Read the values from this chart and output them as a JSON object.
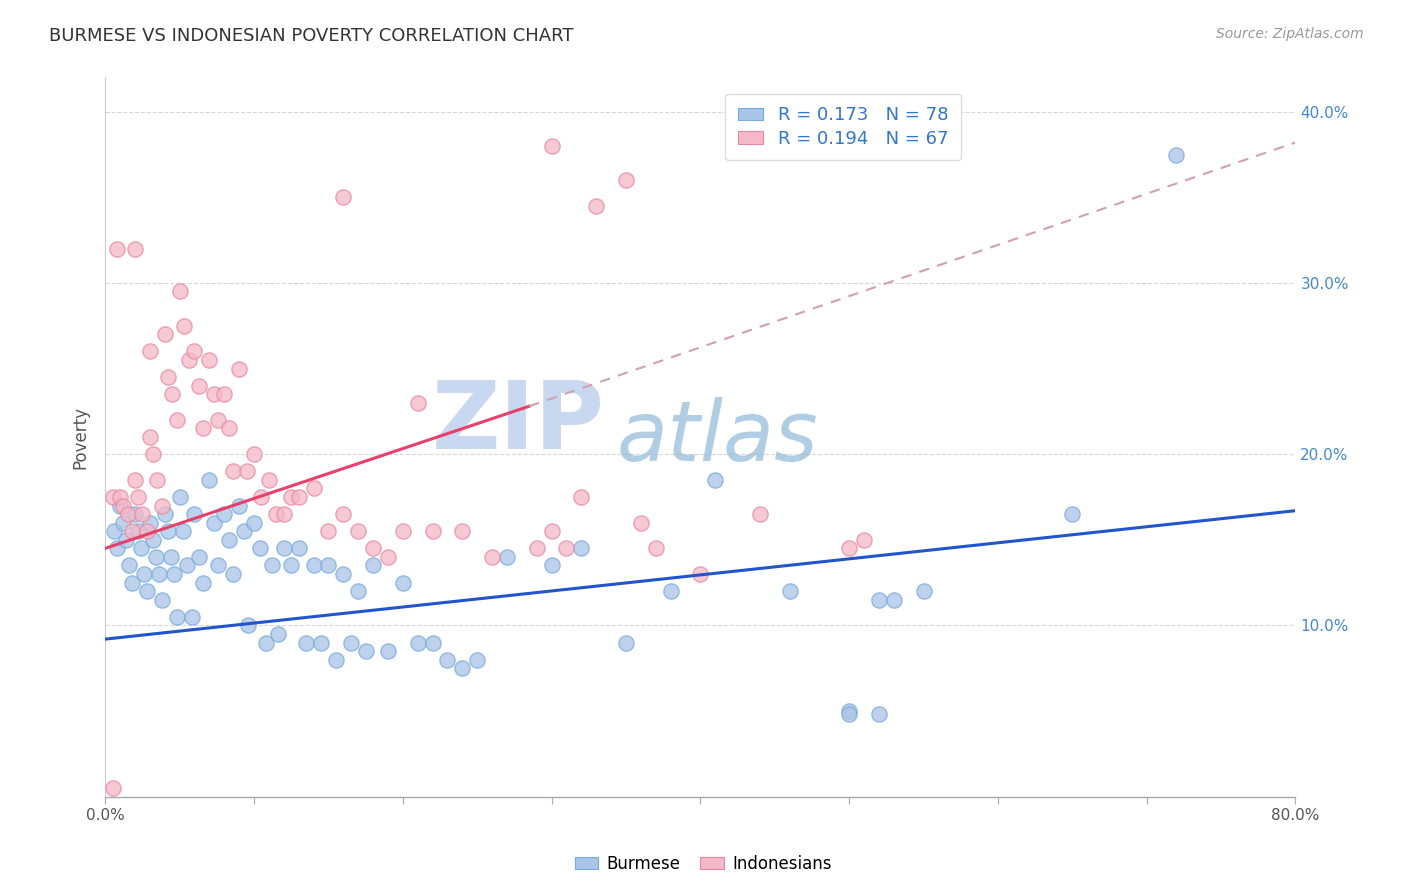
{
  "title": "BURMESE VS INDONESIAN POVERTY CORRELATION CHART",
  "source": "Source: ZipAtlas.com",
  "ylabel": "Poverty",
  "xlim": [
    0.0,
    0.8
  ],
  "ylim": [
    0.0,
    0.42
  ],
  "xtick_labels": [
    "0.0%",
    "",
    "",
    "",
    "",
    "",
    "",
    "",
    "80.0%"
  ],
  "xtick_vals": [
    0.0,
    0.1,
    0.2,
    0.3,
    0.4,
    0.5,
    0.6,
    0.7,
    0.8
  ],
  "ytick_labels": [
    "10.0%",
    "20.0%",
    "30.0%",
    "40.0%"
  ],
  "ytick_vals": [
    0.1,
    0.2,
    0.3,
    0.4
  ],
  "burmese_color": "#a8c4e8",
  "burmese_edge_color": "#7aaad8",
  "indonesian_color": "#f4b8c8",
  "indonesian_edge_color": "#e888a0",
  "burmese_line_color": "#2255cc",
  "indonesian_line_color": "#e8406a",
  "indonesian_dashed_color": "#d0a0b0",
  "R_burmese": 0.173,
  "N_burmese": 78,
  "R_indonesian": 0.194,
  "N_indonesian": 67,
  "watermark_zip": "ZIP",
  "watermark_atlas": "atlas",
  "watermark_color_zip": "#c8d8f0",
  "watermark_color_atlas": "#8fb8d8",
  "legend_text_color": "#3377cc",
  "burmese_x": [
    0.006,
    0.008,
    0.01,
    0.012,
    0.014,
    0.016,
    0.018,
    0.02,
    0.022,
    0.024,
    0.026,
    0.028,
    0.03,
    0.032,
    0.034,
    0.036,
    0.038,
    0.04,
    0.042,
    0.044,
    0.046,
    0.048,
    0.05,
    0.052,
    0.055,
    0.058,
    0.06,
    0.063,
    0.066,
    0.07,
    0.073,
    0.076,
    0.08,
    0.083,
    0.086,
    0.09,
    0.093,
    0.096,
    0.1,
    0.104,
    0.108,
    0.112,
    0.116,
    0.12,
    0.125,
    0.13,
    0.135,
    0.14,
    0.145,
    0.15,
    0.155,
    0.16,
    0.165,
    0.17,
    0.175,
    0.18,
    0.19,
    0.2,
    0.21,
    0.22,
    0.23,
    0.24,
    0.25,
    0.27,
    0.3,
    0.32,
    0.35,
    0.38,
    0.41,
    0.46,
    0.52,
    0.55,
    0.5,
    0.5,
    0.52,
    0.53,
    0.65,
    0.72
  ],
  "burmese_y": [
    0.155,
    0.145,
    0.17,
    0.16,
    0.15,
    0.135,
    0.125,
    0.165,
    0.155,
    0.145,
    0.13,
    0.12,
    0.16,
    0.15,
    0.14,
    0.13,
    0.115,
    0.165,
    0.155,
    0.14,
    0.13,
    0.105,
    0.175,
    0.155,
    0.135,
    0.105,
    0.165,
    0.14,
    0.125,
    0.185,
    0.16,
    0.135,
    0.165,
    0.15,
    0.13,
    0.17,
    0.155,
    0.1,
    0.16,
    0.145,
    0.09,
    0.135,
    0.095,
    0.145,
    0.135,
    0.145,
    0.09,
    0.135,
    0.09,
    0.135,
    0.08,
    0.13,
    0.09,
    0.12,
    0.085,
    0.135,
    0.085,
    0.125,
    0.09,
    0.09,
    0.08,
    0.075,
    0.08,
    0.14,
    0.135,
    0.145,
    0.09,
    0.12,
    0.185,
    0.12,
    0.115,
    0.12,
    0.05,
    0.048,
    0.048,
    0.115,
    0.165,
    0.375
  ],
  "indonesian_x": [
    0.005,
    0.008,
    0.01,
    0.012,
    0.015,
    0.018,
    0.02,
    0.022,
    0.025,
    0.028,
    0.03,
    0.032,
    0.035,
    0.038,
    0.04,
    0.042,
    0.045,
    0.048,
    0.05,
    0.053,
    0.056,
    0.06,
    0.063,
    0.066,
    0.07,
    0.073,
    0.076,
    0.08,
    0.083,
    0.086,
    0.09,
    0.095,
    0.1,
    0.105,
    0.11,
    0.115,
    0.12,
    0.125,
    0.13,
    0.14,
    0.15,
    0.16,
    0.17,
    0.18,
    0.19,
    0.2,
    0.21,
    0.22,
    0.24,
    0.26,
    0.29,
    0.3,
    0.31,
    0.32,
    0.33,
    0.35,
    0.36,
    0.37,
    0.4,
    0.44,
    0.5,
    0.51,
    0.3,
    0.16,
    0.03,
    0.02,
    0.005
  ],
  "indonesian_y": [
    0.175,
    0.32,
    0.175,
    0.17,
    0.165,
    0.155,
    0.185,
    0.175,
    0.165,
    0.155,
    0.21,
    0.2,
    0.185,
    0.17,
    0.27,
    0.245,
    0.235,
    0.22,
    0.295,
    0.275,
    0.255,
    0.26,
    0.24,
    0.215,
    0.255,
    0.235,
    0.22,
    0.235,
    0.215,
    0.19,
    0.25,
    0.19,
    0.2,
    0.175,
    0.185,
    0.165,
    0.165,
    0.175,
    0.175,
    0.18,
    0.155,
    0.165,
    0.155,
    0.145,
    0.14,
    0.155,
    0.23,
    0.155,
    0.155,
    0.14,
    0.145,
    0.155,
    0.145,
    0.175,
    0.345,
    0.36,
    0.16,
    0.145,
    0.13,
    0.165,
    0.145,
    0.15,
    0.38,
    0.35,
    0.26,
    0.32,
    0.005
  ],
  "blue_line": {
    "x0": 0.0,
    "x1": 0.8,
    "y0": 0.092,
    "y1": 0.167
  },
  "pink_line_solid": {
    "x0": 0.0,
    "x1": 0.285,
    "y0": 0.145,
    "y1": 0.228
  },
  "pink_line_dashed": {
    "x0": 0.285,
    "x1": 0.8,
    "y0": 0.228,
    "y1": 0.382
  }
}
